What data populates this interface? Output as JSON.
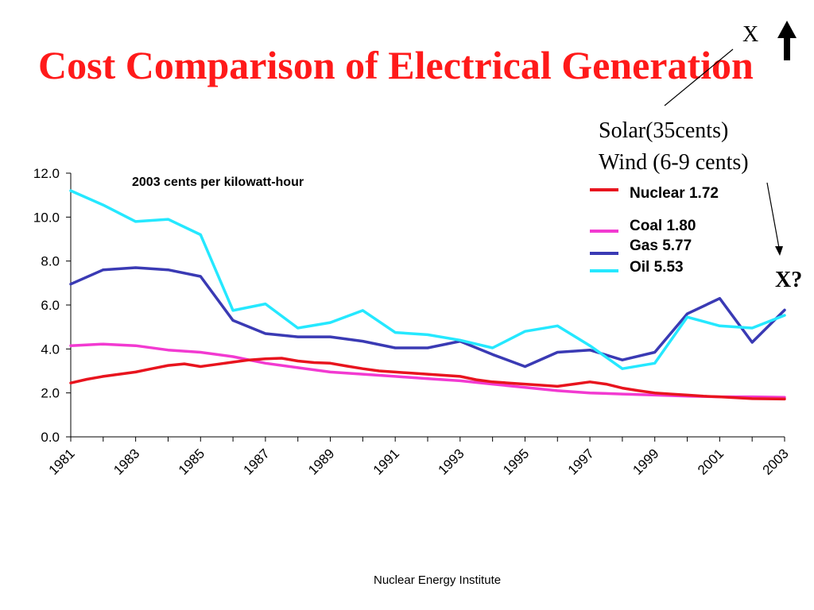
{
  "slide": {
    "title": "Cost Comparison of Electrical Generation",
    "footer": "Nuclear Energy Institute",
    "colors": {
      "title": "#ff1a1a"
    }
  },
  "annotations": {
    "top_x": "X",
    "solar": "Solar(35cents)",
    "wind": "Wind (6-9 cents)",
    "right_x": "X?"
  },
  "chart_data": {
    "type": "line",
    "title": "2003 cents per kilowatt-hour",
    "xlabel": "",
    "ylabel": "",
    "ylim": [
      0,
      12
    ],
    "xlim": [
      1981,
      2003
    ],
    "y_ticks": [
      "0.0",
      "2.0",
      "4.0",
      "6.0",
      "8.0",
      "10.0",
      "12.0"
    ],
    "x_tick_labels": [
      "1981",
      "1983",
      "1985",
      "1987",
      "1989",
      "1991",
      "1993",
      "1995",
      "1997",
      "1999",
      "2001",
      "2003"
    ],
    "grid": false,
    "legend_position": "top-right",
    "series": [
      {
        "name": "Nuclear 1.72",
        "color": "#e8141e",
        "points": [
          [
            1981,
            2.45
          ],
          [
            1981.5,
            2.62
          ],
          [
            1982,
            2.75
          ],
          [
            1982.5,
            2.85
          ],
          [
            1983,
            2.95
          ],
          [
            1983.5,
            3.1
          ],
          [
            1984,
            3.25
          ],
          [
            1984.5,
            3.32
          ],
          [
            1985,
            3.2
          ],
          [
            1985.5,
            3.3
          ],
          [
            1986,
            3.4
          ],
          [
            1986.5,
            3.5
          ],
          [
            1987,
            3.55
          ],
          [
            1987.5,
            3.58
          ],
          [
            1988,
            3.45
          ],
          [
            1988.5,
            3.38
          ],
          [
            1989,
            3.35
          ],
          [
            1989.5,
            3.22
          ],
          [
            1990,
            3.1
          ],
          [
            1990.5,
            3.0
          ],
          [
            1991,
            2.95
          ],
          [
            1991.5,
            2.9
          ],
          [
            1992,
            2.85
          ],
          [
            1992.5,
            2.8
          ],
          [
            1993,
            2.75
          ],
          [
            1993.5,
            2.6
          ],
          [
            1994,
            2.5
          ],
          [
            1994.5,
            2.45
          ],
          [
            1995,
            2.4
          ],
          [
            1995.5,
            2.35
          ],
          [
            1996,
            2.3
          ],
          [
            1996.5,
            2.4
          ],
          [
            1997,
            2.5
          ],
          [
            1997.5,
            2.4
          ],
          [
            1998,
            2.22
          ],
          [
            1998.5,
            2.1
          ],
          [
            1999,
            2.0
          ],
          [
            1999.5,
            1.95
          ],
          [
            2000,
            1.9
          ],
          [
            2000.5,
            1.85
          ],
          [
            2001,
            1.82
          ],
          [
            2001.5,
            1.78
          ],
          [
            2002,
            1.74
          ],
          [
            2002.5,
            1.73
          ],
          [
            2003,
            1.72
          ]
        ]
      },
      {
        "name": "Coal 1.80",
        "color": "#f23ad1",
        "points": [
          [
            1981,
            4.15
          ],
          [
            1982,
            4.22
          ],
          [
            1983,
            4.15
          ],
          [
            1984,
            3.95
          ],
          [
            1985,
            3.85
          ],
          [
            1986,
            3.65
          ],
          [
            1987,
            3.35
          ],
          [
            1988,
            3.15
          ],
          [
            1989,
            2.95
          ],
          [
            1990,
            2.85
          ],
          [
            1991,
            2.75
          ],
          [
            1992,
            2.65
          ],
          [
            1993,
            2.55
          ],
          [
            1994,
            2.4
          ],
          [
            1995,
            2.25
          ],
          [
            1996,
            2.1
          ],
          [
            1997,
            2.0
          ],
          [
            1998,
            1.95
          ],
          [
            1999,
            1.9
          ],
          [
            2000,
            1.85
          ],
          [
            2001,
            1.82
          ],
          [
            2002,
            1.82
          ],
          [
            2003,
            1.8
          ]
        ]
      },
      {
        "name": "Gas 5.77",
        "color": "#3a3ab4",
        "points": [
          [
            1981,
            6.95
          ],
          [
            1982,
            7.6
          ],
          [
            1983,
            7.7
          ],
          [
            1984,
            7.6
          ],
          [
            1985,
            7.3
          ],
          [
            1986,
            5.3
          ],
          [
            1987,
            4.7
          ],
          [
            1988,
            4.55
          ],
          [
            1989,
            4.55
          ],
          [
            1990,
            4.35
          ],
          [
            1991,
            4.05
          ],
          [
            1992,
            4.05
          ],
          [
            1993,
            4.35
          ],
          [
            1994,
            3.75
          ],
          [
            1995,
            3.2
          ],
          [
            1996,
            3.85
          ],
          [
            1997,
            3.95
          ],
          [
            1998,
            3.5
          ],
          [
            1999,
            3.85
          ],
          [
            2000,
            5.6
          ],
          [
            2001,
            6.3
          ],
          [
            2002,
            4.3
          ],
          [
            2003,
            5.77
          ]
        ]
      },
      {
        "name": "Oil 5.53",
        "color": "#25e8ff",
        "points": [
          [
            1981,
            11.2
          ],
          [
            1982,
            10.55
          ],
          [
            1983,
            9.8
          ],
          [
            1984,
            9.9
          ],
          [
            1985,
            9.2
          ],
          [
            1986,
            5.75
          ],
          [
            1987,
            6.05
          ],
          [
            1988,
            4.95
          ],
          [
            1989,
            5.2
          ],
          [
            1990,
            5.75
          ],
          [
            1991,
            4.75
          ],
          [
            1992,
            4.65
          ],
          [
            1993,
            4.4
          ],
          [
            1994,
            4.05
          ],
          [
            1995,
            4.8
          ],
          [
            1996,
            5.05
          ],
          [
            1997,
            4.15
          ],
          [
            1998,
            3.1
          ],
          [
            1999,
            3.35
          ],
          [
            2000,
            5.45
          ],
          [
            2001,
            5.05
          ],
          [
            2002,
            4.95
          ],
          [
            2003,
            5.53
          ]
        ]
      }
    ]
  }
}
